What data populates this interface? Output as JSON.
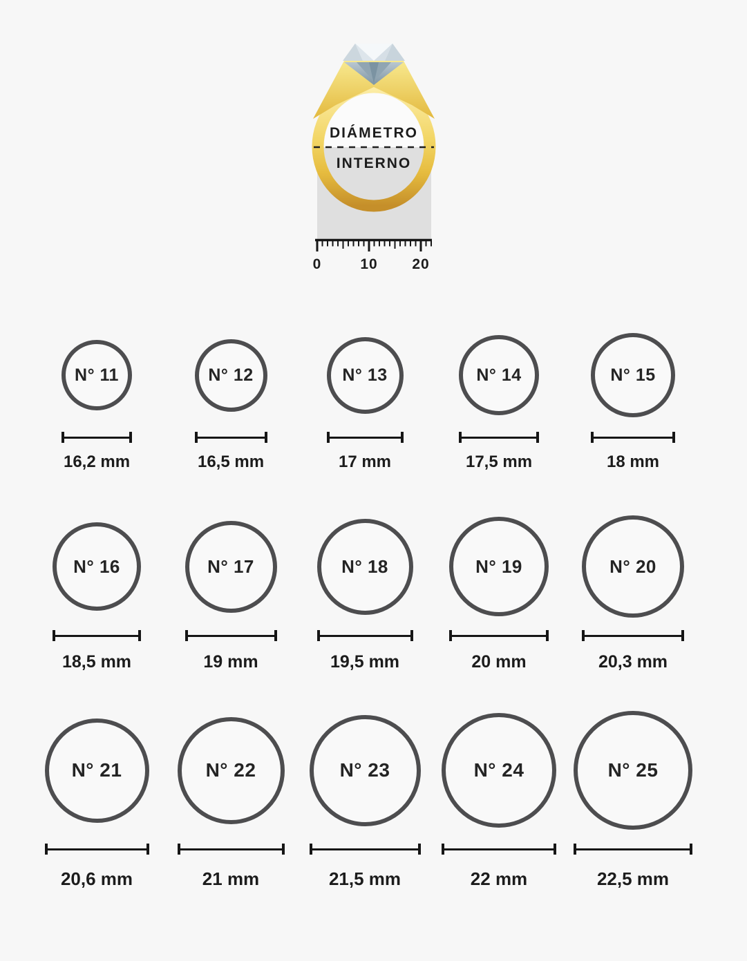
{
  "illustration": {
    "label_top": "DIÁMETRO",
    "label_bottom": "INTERNO",
    "ruler_labels": [
      "0",
      "10",
      "20"
    ]
  },
  "colors": {
    "background": "#f7f7f7",
    "circle_stroke": "#4d4d4f",
    "text": "#1c1c1c",
    "gold_light": "#fceda8",
    "gold_dark": "#c58f2a",
    "measure_backdrop": "#dfdfdf",
    "diamond_light": "#f5f8fa",
    "diamond_dark": "#7b93a2"
  },
  "sizes": [
    {
      "label": "N° 11",
      "diameter_label": "16,2 mm",
      "diameter_mm": 16.2
    },
    {
      "label": "N° 12",
      "diameter_label": "16,5 mm",
      "diameter_mm": 16.5
    },
    {
      "label": "N° 13",
      "diameter_label": "17 mm",
      "diameter_mm": 17
    },
    {
      "label": "N° 14",
      "diameter_label": "17,5 mm",
      "diameter_mm": 17.5
    },
    {
      "label": "N° 15",
      "diameter_label": "18 mm",
      "diameter_mm": 18
    },
    {
      "label": "N° 16",
      "diameter_label": "18,5 mm",
      "diameter_mm": 18.5
    },
    {
      "label": "N° 17",
      "diameter_label": "19 mm",
      "diameter_mm": 19
    },
    {
      "label": "N° 18",
      "diameter_label": "19,5 mm",
      "diameter_mm": 19.5
    },
    {
      "label": "N° 19",
      "diameter_label": "20 mm",
      "diameter_mm": 20
    },
    {
      "label": "N° 20",
      "diameter_label": "20,3 mm",
      "diameter_mm": 20.3
    },
    {
      "label": "N° 21",
      "diameter_label": "20,6 mm",
      "diameter_mm": 20.6
    },
    {
      "label": "N° 22",
      "diameter_label": "21 mm",
      "diameter_mm": 21
    },
    {
      "label": "N° 23",
      "diameter_label": "21,5 mm",
      "diameter_mm": 21.5
    },
    {
      "label": "N° 24",
      "diameter_label": "22 mm",
      "diameter_mm": 22
    },
    {
      "label": "N° 25",
      "diameter_label": "22,5 mm",
      "diameter_mm": 22.5
    }
  ]
}
